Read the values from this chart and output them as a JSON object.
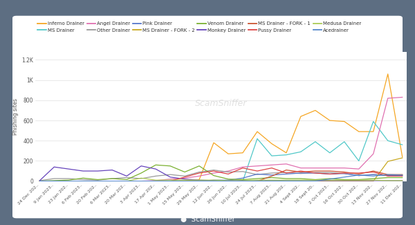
{
  "background_color": "#5d6e82",
  "chart_bg": "#ffffff",
  "ylabel": "Phishing sites",
  "x_labels": [
    "24 Dec 202..",
    "9 Jan 2023..",
    "23 Jan 202..",
    "6 Feb 2023..",
    "20 Feb 202..",
    "6 Mar 2023..",
    "20 Mar 202..",
    "3 Apr 2023..",
    "17 Apr 202..",
    "1 May 2023..",
    "15 May 202..",
    "29 May 202..",
    "12 Jun 202..",
    "26 Jun 202..",
    "10 Jul 2023..",
    "24 Jul 2023..",
    "7 Aug 2023..",
    "21 Aug 202..",
    "4 Sept 202..",
    "18 Sept 20..",
    "2 Oct 2023..",
    "16 Oct 202..",
    "30 Oct 202..",
    "13 Nov 202..",
    "27 Nov 202..",
    "11 Dec 202.."
  ],
  "ytick_vals": [
    0,
    200,
    400,
    600,
    800,
    1000,
    1200
  ],
  "ytick_labels": [
    "0",
    "200",
    "400",
    "600",
    "800",
    "1K",
    "1.2K"
  ],
  "ylim": [
    0,
    1280
  ],
  "series": [
    {
      "name": "Inferno Drainer",
      "color": "#f5a623",
      "data": [
        0,
        0,
        0,
        0,
        0,
        0,
        0,
        0,
        0,
        0,
        5,
        15,
        380,
        270,
        280,
        490,
        370,
        280,
        640,
        700,
        600,
        590,
        490,
        490,
        1060,
        240
      ]
    },
    {
      "name": "MS Drainer",
      "color": "#50c8c8",
      "data": [
        0,
        0,
        0,
        0,
        0,
        0,
        0,
        0,
        0,
        0,
        0,
        0,
        0,
        0,
        0,
        420,
        250,
        260,
        290,
        390,
        280,
        390,
        200,
        590,
        400,
        360
      ]
    },
    {
      "name": "Angel Drainer",
      "color": "#e070b0",
      "data": [
        0,
        0,
        0,
        0,
        0,
        0,
        0,
        0,
        5,
        20,
        30,
        50,
        80,
        100,
        140,
        150,
        160,
        170,
        130,
        130,
        130,
        130,
        120,
        270,
        820,
        830
      ]
    },
    {
      "name": "Other Drainer",
      "color": "#999999",
      "data": [
        5,
        25,
        25,
        15,
        10,
        25,
        35,
        25,
        50,
        65,
        50,
        90,
        110,
        90,
        95,
        65,
        80,
        85,
        75,
        85,
        85,
        75,
        55,
        65,
        55,
        60
      ]
    },
    {
      "name": "Pink Drainer",
      "color": "#5577cc",
      "data": [
        0,
        0,
        0,
        0,
        0,
        0,
        0,
        0,
        0,
        0,
        0,
        0,
        10,
        10,
        30,
        70,
        60,
        70,
        80,
        80,
        70,
        75,
        55,
        65,
        55,
        55
      ]
    },
    {
      "name": "MS Drainer - FORK - 2",
      "color": "#c8a820",
      "data": [
        0,
        0,
        0,
        0,
        0,
        0,
        0,
        0,
        0,
        0,
        0,
        0,
        0,
        0,
        0,
        0,
        0,
        0,
        0,
        0,
        0,
        0,
        0,
        0,
        195,
        230
      ]
    },
    {
      "name": "Venom Drainer",
      "color": "#7ab030",
      "data": [
        0,
        5,
        10,
        30,
        15,
        25,
        15,
        80,
        160,
        150,
        90,
        150,
        55,
        20,
        15,
        25,
        35,
        25,
        25,
        15,
        25,
        15,
        15,
        25,
        35,
        35
      ]
    },
    {
      "name": "Monkey Drainer",
      "color": "#6644bb",
      "data": [
        5,
        140,
        120,
        100,
        100,
        110,
        50,
        150,
        120,
        40,
        20,
        10,
        5,
        5,
        5,
        5,
        5,
        5,
        5,
        5,
        5,
        5,
        5,
        5,
        5,
        5
      ]
    },
    {
      "name": "MS Drainer - FORK - 1",
      "color": "#cc5533",
      "data": [
        0,
        0,
        0,
        0,
        0,
        0,
        0,
        0,
        0,
        0,
        0,
        0,
        0,
        0,
        0,
        0,
        50,
        110,
        90,
        100,
        100,
        90,
        70,
        100,
        65,
        65
      ]
    },
    {
      "name": "Pussy Drainer",
      "color": "#dd4444",
      "data": [
        0,
        0,
        0,
        0,
        0,
        0,
        0,
        0,
        0,
        0,
        40,
        80,
        100,
        70,
        130,
        100,
        130,
        80,
        100,
        80,
        70,
        80,
        80,
        90,
        50,
        50
      ]
    },
    {
      "name": "Medusa Drainer",
      "color": "#aacb55",
      "data": [
        0,
        0,
        0,
        0,
        0,
        0,
        0,
        30,
        10,
        10,
        10,
        10,
        10,
        5,
        5,
        10,
        10,
        10,
        10,
        10,
        10,
        10,
        10,
        10,
        5,
        5
      ]
    },
    {
      "name": "Acedrainer",
      "color": "#5588cc",
      "data": [
        0,
        0,
        0,
        0,
        0,
        0,
        0,
        0,
        0,
        0,
        0,
        0,
        0,
        0,
        0,
        0,
        0,
        0,
        0,
        0,
        20,
        40,
        60,
        50,
        65,
        60
      ]
    }
  ],
  "legend_order": [
    "Inferno Drainer",
    "MS Drainer",
    "Angel Drainer",
    "Other Drainer",
    "Pink Drainer",
    "MS Drainer - FORK - 2",
    "Venom Drainer",
    "Monkey Drainer",
    "MS Drainer - FORK - 1",
    "Pussy Drainer",
    "Medusa Drainer",
    "Acedrainer"
  ]
}
